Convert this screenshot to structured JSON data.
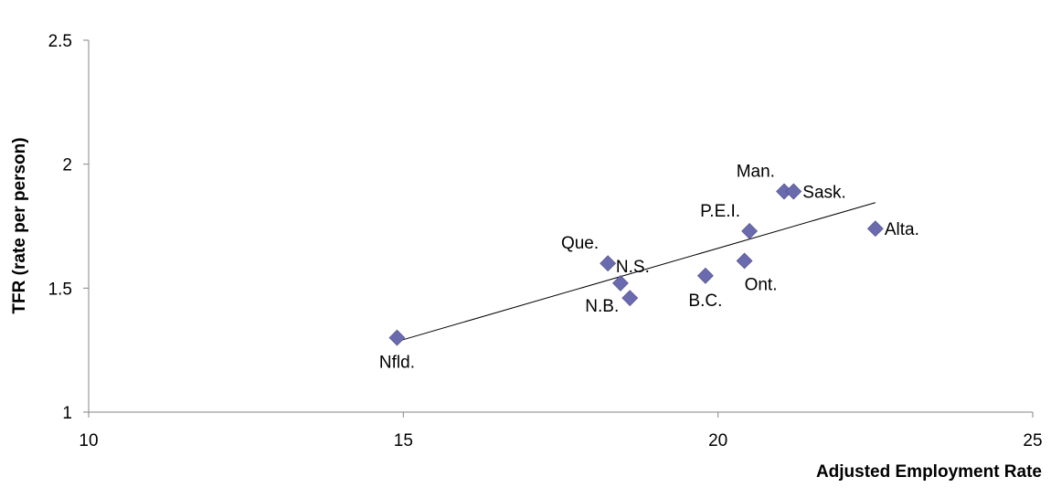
{
  "chart_data": {
    "type": "scatter",
    "title": "",
    "xlabel": "Adjusted Employment Rate",
    "ylabel": "TFR (rate per person)",
    "xlim": [
      10,
      25
    ],
    "ylim": [
      1,
      2.5
    ],
    "x_ticks": [
      "10",
      "15",
      "20",
      "25"
    ],
    "y_ticks": [
      "1",
      "1.5",
      "2",
      "2.5"
    ],
    "grid": false,
    "legend": "none",
    "marker_color": "#6A6AAE",
    "trendline": {
      "type": "linear",
      "x": [
        14.9,
        22.5
      ],
      "y": [
        1.285,
        1.845
      ]
    },
    "points": [
      {
        "label": "Nfld.",
        "x": 14.9,
        "y": 1.3,
        "label_pos": "below"
      },
      {
        "label": "Que.",
        "x": 18.25,
        "y": 1.6,
        "label_pos": "upper-left"
      },
      {
        "label": "N.S.",
        "x": 18.45,
        "y": 1.52,
        "label_pos": "upper-right"
      },
      {
        "label": "N.B.",
        "x": 18.6,
        "y": 1.46,
        "label_pos": "lower-left"
      },
      {
        "label": "B.C.",
        "x": 19.8,
        "y": 1.55,
        "label_pos": "below"
      },
      {
        "label": "Ont.",
        "x": 20.42,
        "y": 1.61,
        "label_pos": "lower-right"
      },
      {
        "label": "P.E.I.",
        "x": 20.5,
        "y": 1.73,
        "label_pos": "upper-left"
      },
      {
        "label": "Man.",
        "x": 21.05,
        "y": 1.89,
        "label_pos": "upper-left"
      },
      {
        "label": "Sask.",
        "x": 21.2,
        "y": 1.89,
        "label_pos": "right"
      },
      {
        "label": "Alta.",
        "x": 22.5,
        "y": 1.74,
        "label_pos": "right"
      }
    ]
  }
}
